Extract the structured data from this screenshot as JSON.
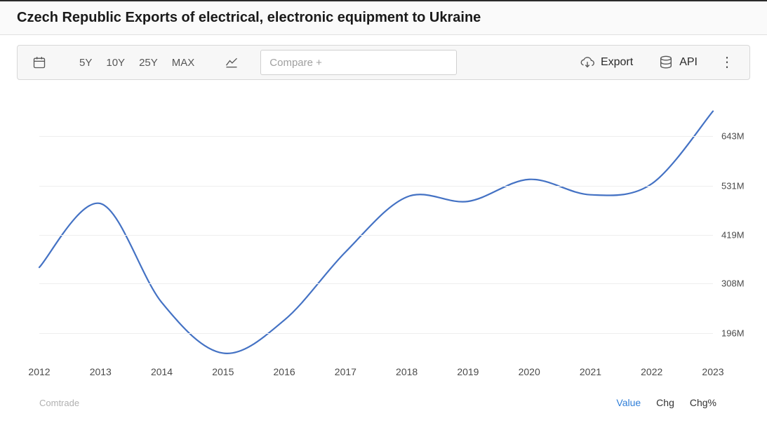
{
  "header": {
    "title": "Czech Republic Exports of electrical, electronic equipment to Ukraine"
  },
  "toolbar": {
    "ranges": [
      "5Y",
      "10Y",
      "25Y",
      "MAX"
    ],
    "compare_placeholder": "Compare +",
    "export_label": "Export",
    "api_label": "API"
  },
  "chart": {
    "type": "line",
    "line_color": "#4472c4",
    "line_width": 2.2,
    "background_color": "#ffffff",
    "grid_color": "#eeeeee",
    "font_color": "#4a4a4a",
    "label_fontsize": 13,
    "x_categories": [
      "2012",
      "2013",
      "2014",
      "2015",
      "2016",
      "2017",
      "2018",
      "2019",
      "2020",
      "2021",
      "2022",
      "2023"
    ],
    "y_ticks": [
      196,
      308,
      419,
      531,
      643
    ],
    "y_tick_labels": [
      "196M",
      "308M",
      "419M",
      "531M",
      "643M"
    ],
    "ylim": [
      130,
      720
    ],
    "series": [
      {
        "x": "2012",
        "y": 345
      },
      {
        "x": "2013",
        "y": 490
      },
      {
        "x": "2014",
        "y": 265
      },
      {
        "x": "2015",
        "y": 150
      },
      {
        "x": "2016",
        "y": 225
      },
      {
        "x": "2017",
        "y": 380
      },
      {
        "x": "2018",
        "y": 505
      },
      {
        "x": "2019",
        "y": 495
      },
      {
        "x": "2020",
        "y": 545
      },
      {
        "x": "2021",
        "y": 510
      },
      {
        "x": "2022",
        "y": 535
      },
      {
        "x": "2023",
        "y": 700
      }
    ]
  },
  "footer": {
    "source": "Comtrade",
    "tabs": [
      {
        "label": "Value",
        "active": true
      },
      {
        "label": "Chg",
        "active": false
      },
      {
        "label": "Chg%",
        "active": false
      }
    ]
  }
}
